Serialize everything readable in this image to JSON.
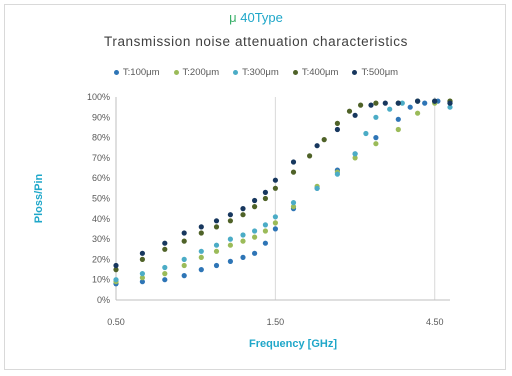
{
  "badge": {
    "mu": "μ",
    "text": "40Type"
  },
  "chart_data": {
    "type": "scatter",
    "title": "Transmission noise attenuation characteristics",
    "xlabel": "Frequency [GHz]",
    "ylabel": "Ploss/Pin",
    "x_ticks": [
      "0.50",
      "1.50",
      "4.50"
    ],
    "y_ticks": [
      "0%",
      "10%",
      "20%",
      "30%",
      "40%",
      "50%",
      "60%",
      "70%",
      "80%",
      "90%",
      "100%"
    ],
    "ylim": [
      0,
      100
    ],
    "xlim": [
      0.5,
      5
    ],
    "x_scale": "log",
    "grid": "vertical",
    "legend_position": "top",
    "series": [
      {
        "name": "T:100μm",
        "color": "#2e75b6",
        "x": [
          0.5,
          0.6,
          0.7,
          0.8,
          0.9,
          1.0,
          1.1,
          1.2,
          1.3,
          1.4,
          1.5,
          1.7,
          2.0,
          2.3,
          2.6,
          3.0,
          3.5,
          3.8,
          4.2,
          4.6,
          5.0
        ],
        "y": [
          8,
          9,
          10,
          12,
          15,
          17,
          19,
          21,
          23,
          28,
          35,
          45,
          55,
          64,
          72,
          80,
          89,
          95,
          97,
          98,
          97
        ]
      },
      {
        "name": "T:200μm",
        "color": "#9bbb59",
        "x": [
          0.5,
          0.6,
          0.7,
          0.8,
          0.9,
          1.0,
          1.1,
          1.2,
          1.3,
          1.4,
          1.5,
          1.7,
          2.0,
          2.3,
          2.6,
          3.0,
          3.5,
          4.0,
          4.5,
          5.0
        ],
        "y": [
          9,
          11,
          13,
          17,
          21,
          24,
          27,
          29,
          31,
          34,
          38,
          46,
          56,
          63,
          70,
          77,
          84,
          92,
          97,
          98
        ]
      },
      {
        "name": "T:300μm",
        "color": "#4bacc6",
        "x": [
          0.5,
          0.6,
          0.7,
          0.8,
          0.9,
          1.0,
          1.1,
          1.2,
          1.3,
          1.4,
          1.5,
          1.7,
          2.0,
          2.3,
          2.6,
          2.8,
          3.0,
          3.3,
          3.6,
          4.0,
          4.5,
          5.0
        ],
        "y": [
          10,
          13,
          16,
          20,
          24,
          27,
          30,
          32,
          34,
          37,
          41,
          48,
          55,
          62,
          72,
          82,
          90,
          94,
          97,
          98,
          98,
          95
        ]
      },
      {
        "name": "T:400μm",
        "color": "#4f6228",
        "x": [
          0.5,
          0.6,
          0.7,
          0.8,
          0.9,
          1.0,
          1.1,
          1.2,
          1.3,
          1.4,
          1.5,
          1.7,
          1.9,
          2.1,
          2.3,
          2.5,
          2.7,
          3.0,
          3.5,
          4.0,
          4.5,
          5.0
        ],
        "y": [
          15,
          20,
          25,
          29,
          33,
          36,
          39,
          42,
          46,
          50,
          55,
          63,
          71,
          79,
          87,
          93,
          96,
          97,
          97,
          98,
          98,
          98
        ]
      },
      {
        "name": "T:500μm",
        "color": "#17375e",
        "x": [
          0.5,
          0.6,
          0.7,
          0.8,
          0.9,
          1.0,
          1.1,
          1.2,
          1.3,
          1.4,
          1.5,
          1.7,
          2.0,
          2.3,
          2.6,
          2.9,
          3.2,
          3.5,
          4.0,
          4.5,
          5.0
        ],
        "y": [
          17,
          23,
          28,
          33,
          36,
          39,
          42,
          45,
          49,
          53,
          59,
          68,
          76,
          84,
          91,
          96,
          97,
          97,
          98,
          98,
          97
        ]
      }
    ]
  }
}
